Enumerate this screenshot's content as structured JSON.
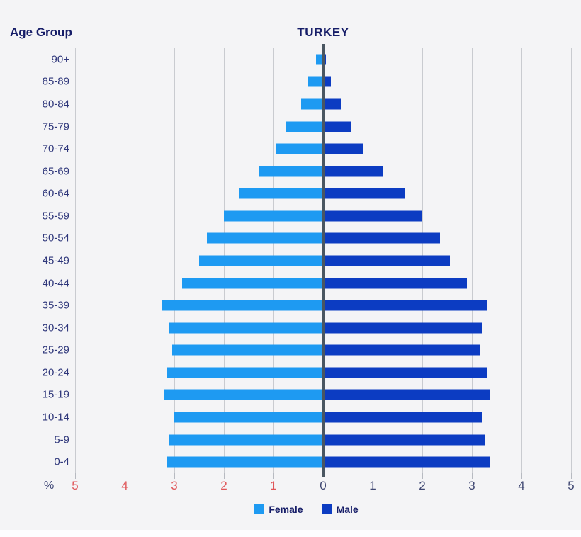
{
  "header": {
    "age_group_label": "Age Group",
    "title": "TURKEY"
  },
  "axis": {
    "percent_label": "%",
    "tick_values": [
      5,
      4,
      3,
      2,
      1,
      0,
      1,
      2,
      3,
      4,
      5
    ],
    "left_tick_color": "#e05558",
    "right_tick_color": "#3f4772",
    "gridline_color": "#c9cbd0",
    "center_axis_color": "#4a5661"
  },
  "legend": {
    "items": [
      {
        "label": "Female",
        "color": "#1e9af2"
      },
      {
        "label": "Male",
        "color": "#0c3cc2"
      }
    ]
  },
  "colors": {
    "background": "#f4f4f6",
    "title_text": "#161d68",
    "age_label_text": "#2f377b",
    "female_bar": "#1e9af2",
    "male_bar": "#0c3cc2"
  },
  "chart_data": {
    "type": "bar",
    "subtype": "population-pyramid",
    "title": "TURKEY",
    "xlabel": "%",
    "ylabel": "Age Group",
    "xlim": [
      -5,
      5
    ],
    "grid": true,
    "legend_position": "bottom",
    "categories": [
      "90+",
      "85-89",
      "80-84",
      "75-79",
      "70-74",
      "65-69",
      "60-64",
      "55-59",
      "50-54",
      "45-49",
      "40-44",
      "35-39",
      "30-34",
      "25-29",
      "20-24",
      "15-19",
      "10-14",
      "5-9",
      "0-4"
    ],
    "series": [
      {
        "name": "Female",
        "side": "left",
        "color": "#1e9af2",
        "values": [
          0.15,
          0.3,
          0.45,
          0.75,
          0.95,
          1.3,
          1.7,
          2.0,
          2.35,
          2.5,
          2.85,
          3.25,
          3.1,
          3.05,
          3.15,
          3.2,
          3.0,
          3.1,
          3.15
        ]
      },
      {
        "name": "Male",
        "side": "right",
        "color": "#0c3cc2",
        "values": [
          0.05,
          0.15,
          0.35,
          0.55,
          0.8,
          1.2,
          1.65,
          2.0,
          2.35,
          2.55,
          2.9,
          3.3,
          3.2,
          3.15,
          3.3,
          3.35,
          3.2,
          3.25,
          3.35
        ]
      }
    ]
  }
}
